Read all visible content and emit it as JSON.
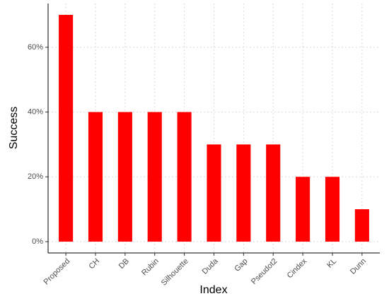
{
  "chart_data": {
    "type": "bar",
    "x_label": "Index",
    "y_label": "Success",
    "categories": [
      "Proposed",
      "CH",
      "DB",
      "Rubin",
      "Silhouette",
      "Duda",
      "Gap",
      "Pseudot2",
      "Cindex",
      "KL",
      "Dunn"
    ],
    "values": [
      70,
      40,
      40,
      40,
      40,
      30,
      30,
      30,
      20,
      20,
      10
    ],
    "color": "#ff0000",
    "ylim": [
      -3.5,
      73.5
    ],
    "yticks": [
      {
        "value": 0,
        "label": "0%"
      },
      {
        "value": 20,
        "label": "20%"
      },
      {
        "value": 40,
        "label": "40%"
      },
      {
        "value": 60,
        "label": "60%"
      }
    ],
    "grid": true
  }
}
